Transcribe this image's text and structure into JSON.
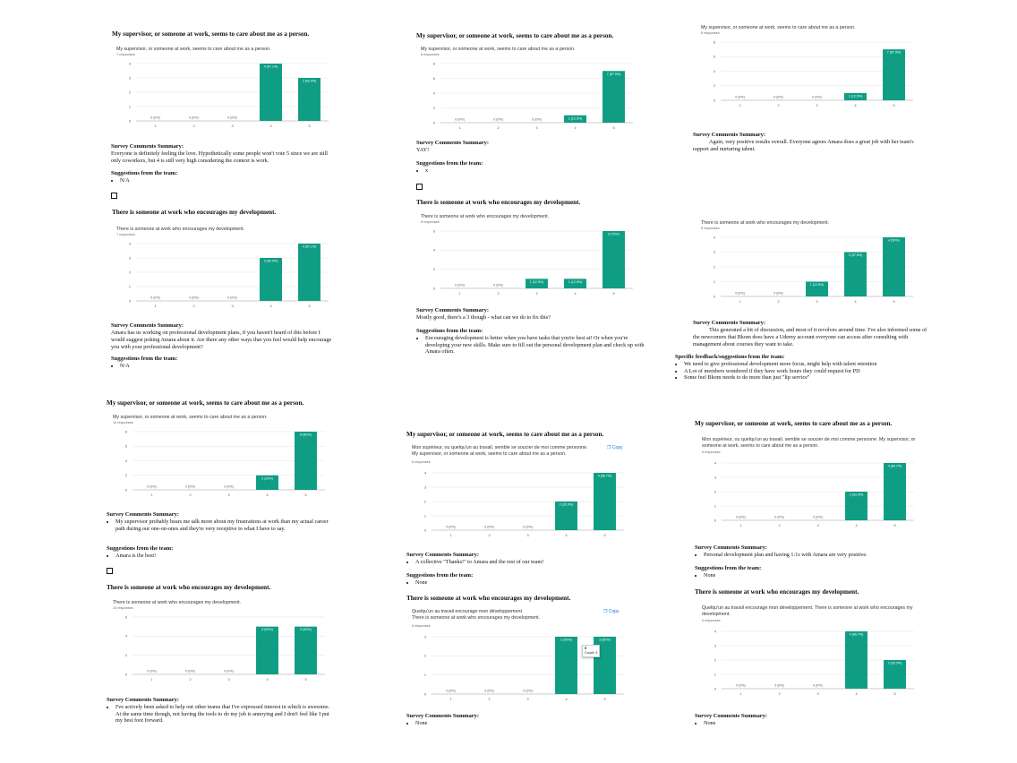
{
  "colors": {
    "bar": "#0f9d84",
    "grid": "#e6e6e6",
    "axis": "#999999"
  },
  "headings": {
    "supervisor": "My supervisor, or someone at work, seems to care about me as a person.",
    "development": "There is someone at work who encourages my development."
  },
  "labels": {
    "comments": "Survey Comments Summary:",
    "suggestions": "Suggestions from the team:",
    "feedback": "Specific feedback/suggestions from the team:"
  },
  "chart_titles": {
    "supervisor_en": "My supervisor, or someone at work, seems to care about me as a person.",
    "development_en": "There is someone at work who encourages my development.",
    "supervisor_fr": "Mon supérieur, ou quelqu'un au travail, semble se soucier de moi comme personne.",
    "supervisor_fr_en": "Mon supérieur, ou quelqu'un au travail, semble se soucier de moi comme personne. My supervisor, or someone at work, seems to care about me as a person.",
    "development_fr": "Quelqu'un au travail encourage mon développement.",
    "development_fr_en": "Quelqu'un au travail encourage mon développement. There is someone at work who encourages my development."
  },
  "copy_label": "Copy",
  "tooltip": {
    "value": "5",
    "label": "Count: 3"
  },
  "panels": {
    "p1": {
      "c1_resp": "7 responses",
      "c1_comment": "Everyone is definitely feeling the love. Hypothetically some people won't vote 5 since we are still only coworkers, but 4 is still very high considering the context is work.",
      "c1_sugg": [
        "N/A"
      ],
      "c2_resp": "7 responses",
      "c2_comment": "Amara has us working on professional development plans, if you haven't heard of this before I would suggest poking Amara about it. Are there any other ways that you feel would help encourage you with your professional development?",
      "c2_sugg": [
        "N/A"
      ]
    },
    "p2": {
      "c1_resp": "8 responses",
      "c1_comment": "YAY!",
      "c1_sugg": [
        "x"
      ],
      "c2_resp": "8 responses",
      "c2_comment": "Mostly good, there's a 3 though - what can we do to fix this?",
      "c2_sugg": [
        "Encouraging development is better when you have tasks that you're best at! Or when you're developing your new skills. Make sure to fill out the personal development plan and check up with Amara often."
      ]
    },
    "p3": {
      "c1_resp": "8 responses",
      "c1_comment": "Again, very positive results overall. Everyone agrees Amara does a great job with her team's rapport and nurturing talent.",
      "c2_resp": "8 responses",
      "c2_comment": "This generated a bit of discussion, and most of it revolves around time. I've also informed some of the newcomers that Bkom does have a Udemy account everyone can access after consulting with management about courses they want to take.",
      "c2_feedback": [
        "We need to give professional development more focus, might help with talent retention",
        "A Lot of members wondered if they have work hours they could request for PD",
        "Some feel Bkom needs to do more than just \"lip service\""
      ]
    },
    "p4": {
      "c1_resp": "10 responses",
      "c1_comment": [
        "My supervisor probably hears me talk more about my frustrations at work than my actual career path during our one-on-ones and they're very receptive to what I have to say."
      ],
      "c1_sugg": [
        "Amara is the best!"
      ],
      "c2_resp": "10 responses",
      "c2_comment": [
        "I've actively been asked to help out other teams that I've expressed interest in which is awesome. At the same time though, not having the tools to do my job is annoying and I don't feel like I put my best foot forward."
      ]
    },
    "p5": {
      "c1_resp": "6 responses",
      "c1_comment": [
        "A collective \"Thanks!\" to Amara and the rest of our team!"
      ],
      "c1_sugg": [
        "None"
      ],
      "c2_resp": "6 responses",
      "c2_comment": [
        "None"
      ]
    },
    "p6": {
      "c1_resp": "6 responses",
      "c1_comment": [
        "Personal development plan and having 1:1s with Amara are very positive."
      ],
      "c1_sugg": [
        "None"
      ],
      "c2_resp": "6 responses",
      "c2_comment": [
        "None"
      ]
    }
  },
  "chart_data": [
    {
      "id": "p1c1",
      "type": "bar",
      "categories": [
        "1",
        "2",
        "3",
        "4",
        "5"
      ],
      "values": [
        0,
        0,
        0,
        4,
        3
      ],
      "labels": [
        "0 (0%)",
        "0 (0%)",
        "0 (0%)",
        "4 (57.1%)",
        "3 (42.9%)"
      ],
      "ylim": [
        0,
        4
      ],
      "yticks": [
        0,
        1,
        2,
        3,
        4
      ]
    },
    {
      "id": "p1c2",
      "type": "bar",
      "categories": [
        "1",
        "2",
        "3",
        "4",
        "5"
      ],
      "values": [
        0,
        0,
        0,
        3,
        4
      ],
      "labels": [
        "0 (0%)",
        "0 (0%)",
        "0 (0%)",
        "3 (42.9%)",
        "4 (57.1%)"
      ],
      "ylim": [
        0,
        4
      ],
      "yticks": [
        0,
        1,
        2,
        3,
        4
      ]
    },
    {
      "id": "p2c1",
      "type": "bar",
      "categories": [
        "1",
        "2",
        "3",
        "4",
        "5"
      ],
      "values": [
        0,
        0,
        0,
        1,
        7
      ],
      "labels": [
        "0 (0%)",
        "0 (0%)",
        "0 (0%)",
        "1 (12.5%)",
        "7 (87.5%)"
      ],
      "ylim": [
        0,
        8
      ],
      "yticks": [
        0,
        2,
        4,
        6,
        8
      ]
    },
    {
      "id": "p2c2",
      "type": "bar",
      "categories": [
        "1",
        "2",
        "3",
        "4",
        "5"
      ],
      "values": [
        0,
        0,
        1,
        1,
        6
      ],
      "labels": [
        "0 (0%)",
        "0 (0%)",
        "1 (12.5%)",
        "1 (12.5%)",
        "6 (75%)"
      ],
      "ylim": [
        0,
        6
      ],
      "yticks": [
        0,
        2,
        4,
        6
      ]
    },
    {
      "id": "p3c1",
      "type": "bar",
      "categories": [
        "1",
        "2",
        "3",
        "4",
        "5"
      ],
      "values": [
        0,
        0,
        0,
        1,
        7
      ],
      "labels": [
        "0 (0%)",
        "0 (0%)",
        "0 (0%)",
        "1 (12.5%)",
        "7 (87.5%)"
      ],
      "ylim": [
        0,
        8
      ],
      "yticks": [
        0,
        2,
        4,
        6,
        8
      ]
    },
    {
      "id": "p3c2",
      "type": "bar",
      "categories": [
        "1",
        "2",
        "3",
        "4",
        "5"
      ],
      "values": [
        0,
        0,
        1,
        3,
        4
      ],
      "labels": [
        "0 (0%)",
        "0 (0%)",
        "1 (12.5%)",
        "3 (37.5%)",
        "4 (50%)"
      ],
      "ylim": [
        0,
        4
      ],
      "yticks": [
        0,
        1,
        2,
        3,
        4
      ]
    },
    {
      "id": "p4c1",
      "type": "bar",
      "categories": [
        "1",
        "2",
        "3",
        "4",
        "5"
      ],
      "values": [
        0,
        0,
        0,
        2,
        8
      ],
      "labels": [
        "0 (0%)",
        "0 (0%)",
        "0 (0%)",
        "2 (20%)",
        "8 (80%)"
      ],
      "ylim": [
        0,
        8
      ],
      "yticks": [
        0,
        2,
        4,
        6,
        8
      ]
    },
    {
      "id": "p4c2",
      "type": "bar",
      "categories": [
        "1",
        "2",
        "3",
        "4",
        "5"
      ],
      "values": [
        0,
        0,
        0,
        5,
        5
      ],
      "labels": [
        "0 (0%)",
        "0 (0%)",
        "0 (0%)",
        "5 (50%)",
        "5 (50%)"
      ],
      "ylim": [
        0,
        6
      ],
      "yticks": [
        0,
        2,
        4,
        6
      ]
    },
    {
      "id": "p5c1",
      "type": "bar",
      "categories": [
        "1",
        "2",
        "3",
        "4",
        "5"
      ],
      "values": [
        0,
        0,
        0,
        2,
        4
      ],
      "labels": [
        "0 (0%)",
        "0 (0%)",
        "0 (0%)",
        "2 (33.3%)",
        "4 (66.7%)"
      ],
      "ylim": [
        0,
        4
      ],
      "yticks": [
        0,
        1,
        2,
        3,
        4
      ]
    },
    {
      "id": "p5c2",
      "type": "bar",
      "categories": [
        "1",
        "2",
        "3",
        "4",
        "5"
      ],
      "values": [
        0,
        0,
        0,
        3,
        3
      ],
      "labels": [
        "0 (0%)",
        "0 (0%)",
        "0 (0%)",
        "3 (50%)",
        "3 (50%)"
      ],
      "ylim": [
        0,
        3
      ],
      "yticks": [
        0,
        1,
        2,
        3
      ]
    },
    {
      "id": "p6c1",
      "type": "bar",
      "categories": [
        "1",
        "2",
        "3",
        "4",
        "5"
      ],
      "values": [
        0,
        0,
        0,
        2,
        4
      ],
      "labels": [
        "0 (0%)",
        "0 (0%)",
        "0 (0%)",
        "2 (33.3%)",
        "4 (66.7%)"
      ],
      "ylim": [
        0,
        4
      ],
      "yticks": [
        0,
        1,
        2,
        3,
        4
      ]
    },
    {
      "id": "p6c2",
      "type": "bar",
      "categories": [
        "1",
        "2",
        "3",
        "4",
        "5"
      ],
      "values": [
        0,
        0,
        0,
        4,
        2
      ],
      "labels": [
        "0 (0%)",
        "0 (0%)",
        "0 (0%)",
        "4 (66.7%)",
        "2 (33.3%)"
      ],
      "ylim": [
        0,
        4
      ],
      "yticks": [
        0,
        1,
        2,
        3,
        4
      ]
    }
  ]
}
